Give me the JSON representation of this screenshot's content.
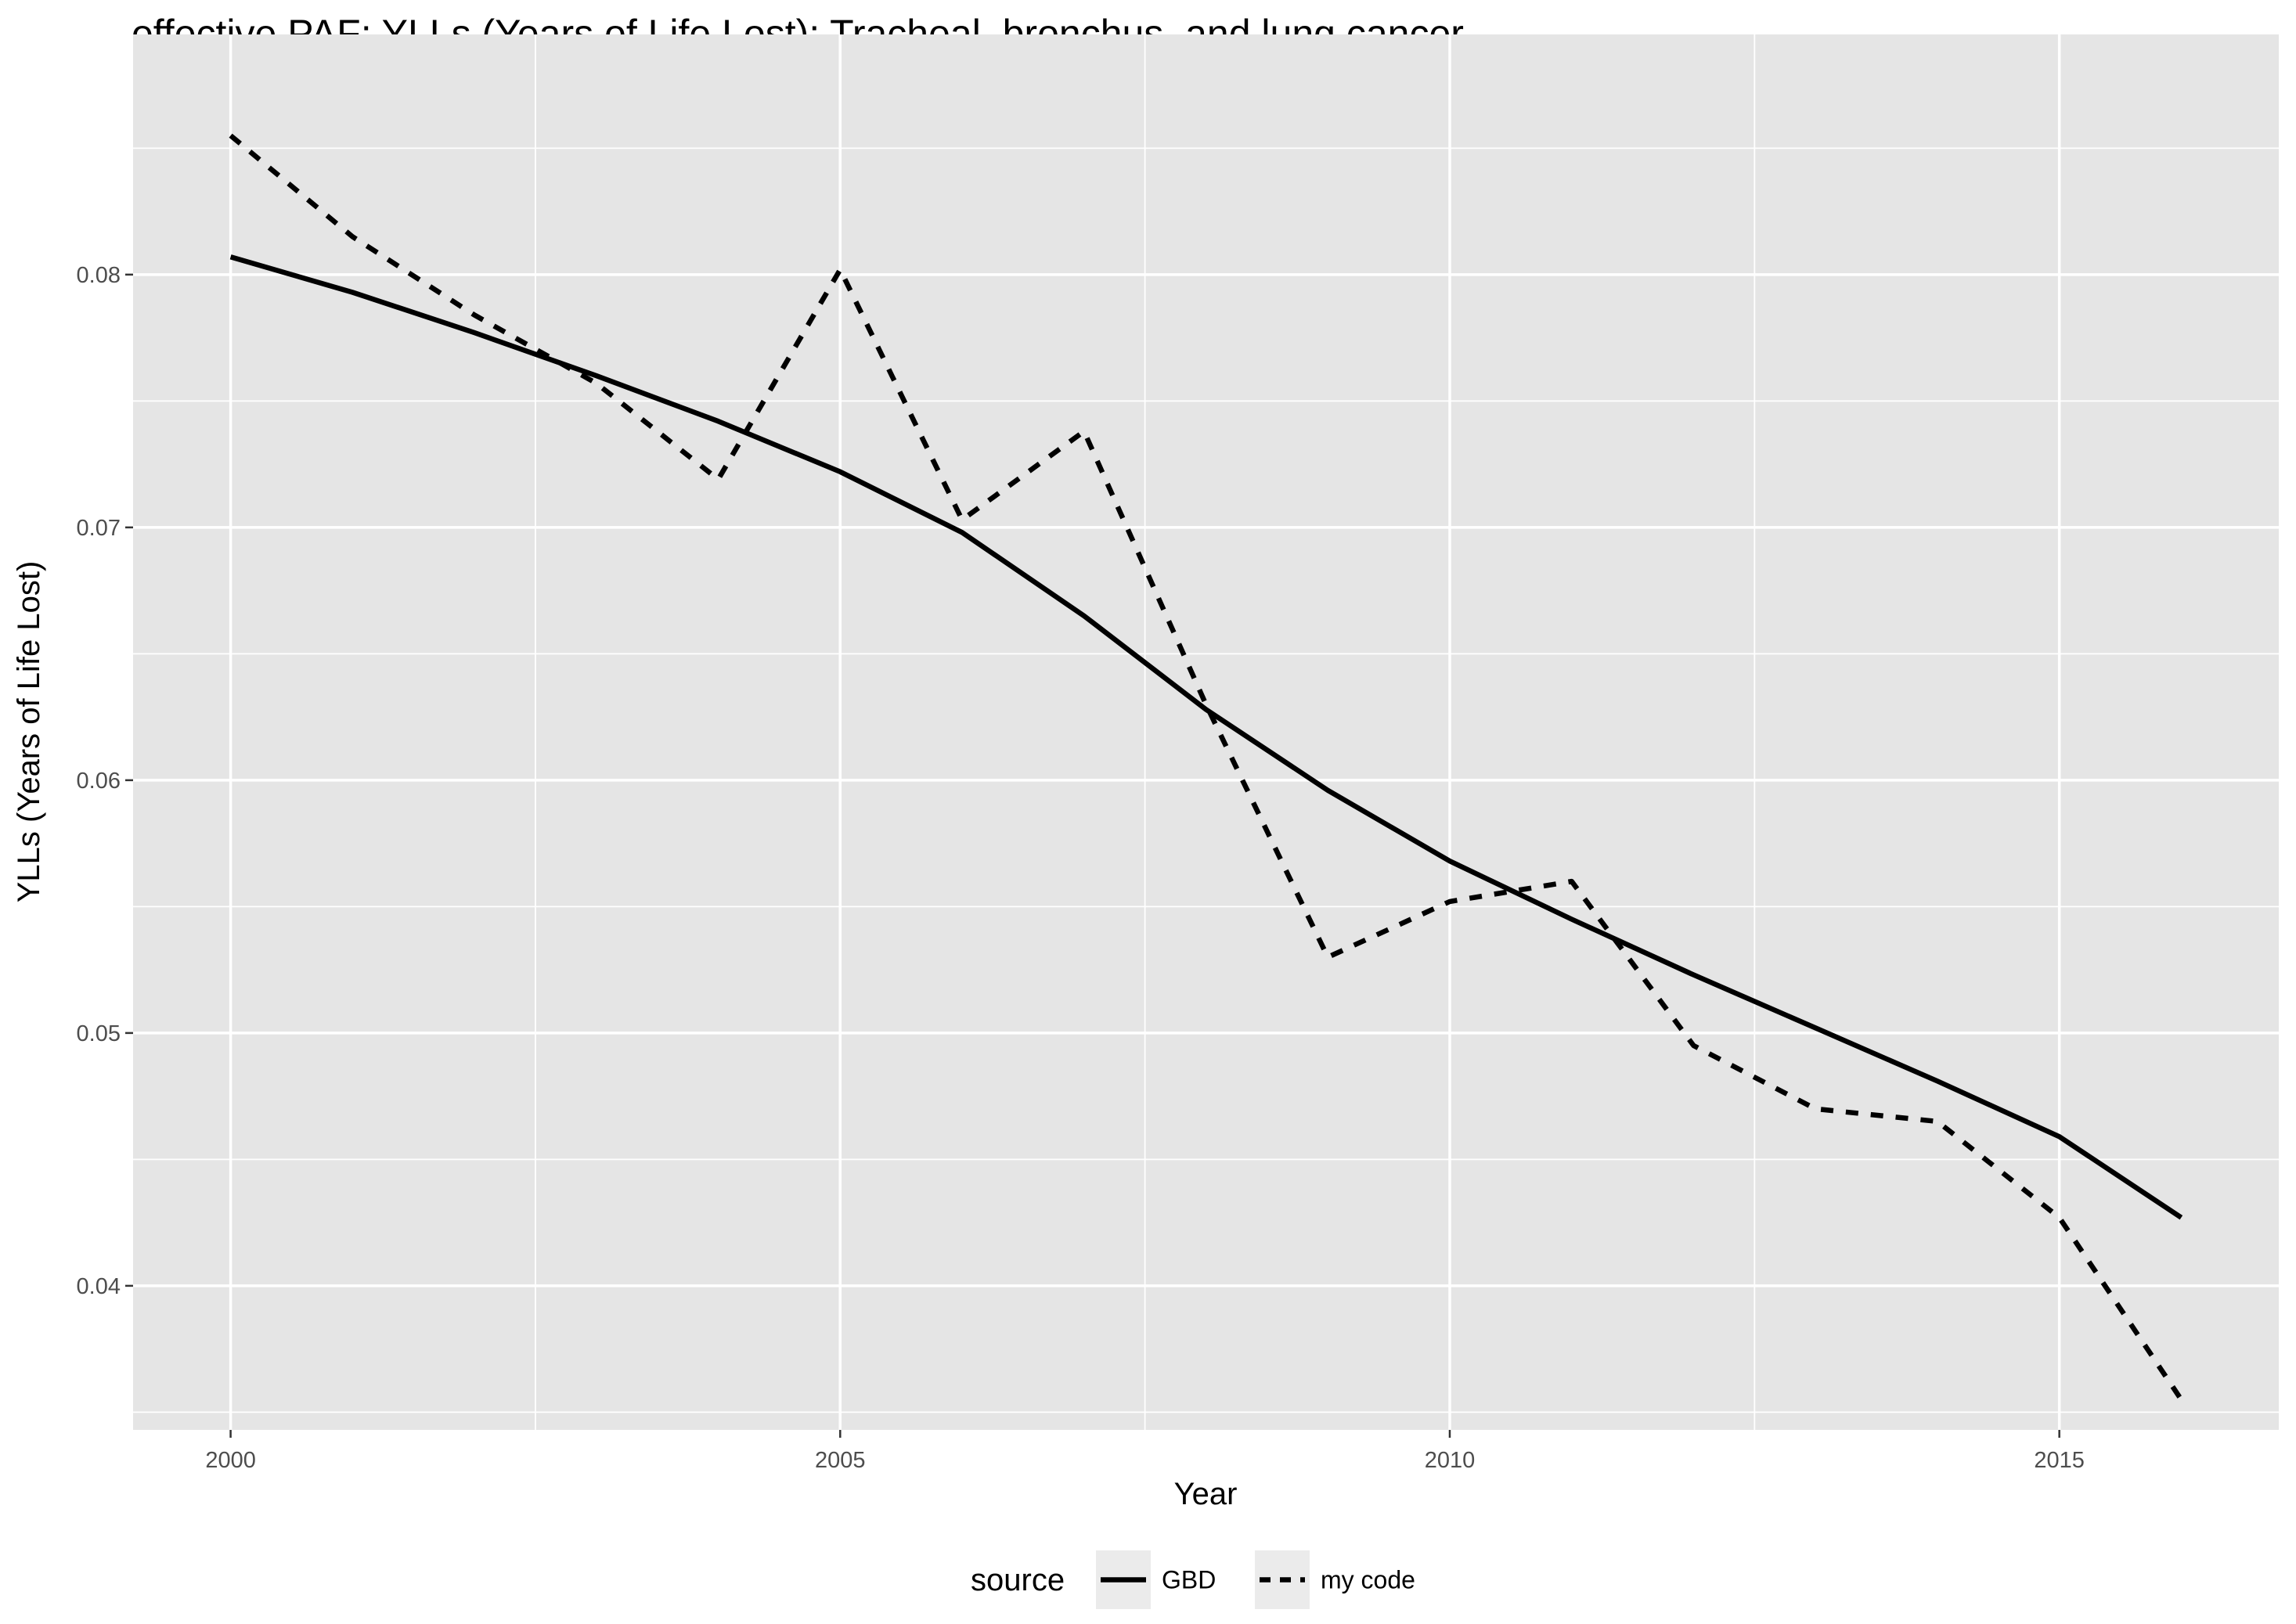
{
  "chart_data": {
    "type": "line",
    "title": "effective PAF; YLLs (Years of Life Lost); Tracheal, bronchus, and lung cancer",
    "xlabel": "Year",
    "ylabel": "YLLs (Years of Life Lost)",
    "x": [
      2000,
      2001,
      2002,
      2003,
      2004,
      2005,
      2006,
      2007,
      2008,
      2009,
      2010,
      2011,
      2012,
      2013,
      2014,
      2015,
      2016
    ],
    "xlim": [
      1999.2,
      2016.8
    ],
    "ylim": [
      0.0343,
      0.0895
    ],
    "x_ticks": [
      2000,
      2005,
      2010,
      2015
    ],
    "x_tick_labels": [
      "2000",
      "2005",
      "2010",
      "2015"
    ],
    "y_ticks": [
      0.04,
      0.05,
      0.06,
      0.07,
      0.08
    ],
    "y_tick_labels": [
      "0.04",
      "0.05",
      "0.06",
      "0.07",
      "0.08"
    ],
    "grid": true,
    "legend": {
      "title": "source",
      "position": "bottom"
    },
    "series": [
      {
        "name": "GBD",
        "line_style": "solid",
        "values": [
          0.0807,
          0.0793,
          0.0777,
          0.076,
          0.0742,
          0.0722,
          0.0698,
          0.0665,
          0.0628,
          0.0596,
          0.0568,
          0.0545,
          0.0523,
          0.0502,
          0.0481,
          0.0459,
          0.0427
        ]
      },
      {
        "name": "my code",
        "line_style": "dashed",
        "values": [
          0.0855,
          0.0815,
          0.0784,
          0.0757,
          0.0719,
          0.0802,
          0.0703,
          0.0738,
          0.063,
          0.053,
          0.0552,
          0.056,
          0.0495,
          0.047,
          0.0465,
          0.0427,
          0.0355
        ]
      }
    ],
    "colors": {
      "panel_background": "#e5e5e5",
      "grid": "#ffffff",
      "line": "#000000",
      "legend_key_background": "#ebebeb",
      "tick_text": "#4d4d4d"
    }
  }
}
